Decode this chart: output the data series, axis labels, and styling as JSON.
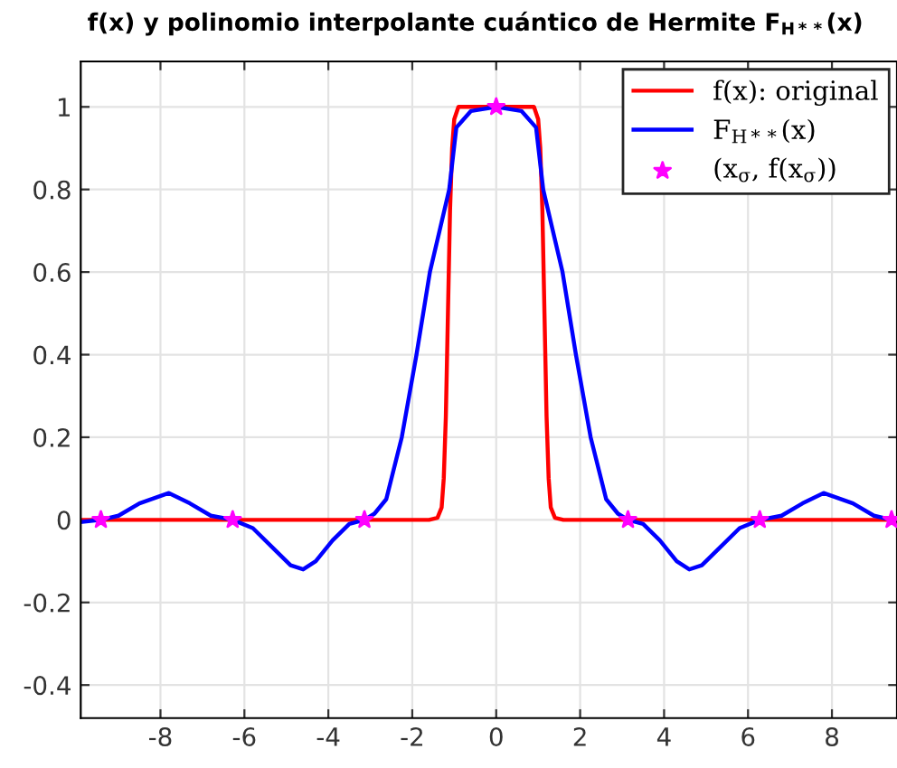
{
  "chart_data": {
    "type": "line",
    "title": "f(x) y polinomio interpolante cuántico de Hermite F$_{H**}$(x)",
    "xlim": [
      -9.9,
      9.55
    ],
    "ylim": [
      -0.48,
      1.11
    ],
    "xticks": [
      -8,
      -6,
      -4,
      -2,
      0,
      2,
      4,
      6,
      8
    ],
    "yticks": [
      -0.4,
      -0.2,
      0,
      0.2,
      0.4,
      0.6,
      0.8,
      1
    ],
    "grid": true,
    "legend": "top right",
    "line_style": "solid",
    "series": [
      {
        "name": "f(x): original",
        "color": "#ff0000",
        "x": [
          -9.9,
          -1.6,
          -1.4,
          -1.3,
          -1.25,
          -1.2,
          -1.15,
          -1.1,
          -1.05,
          -1.0,
          -0.9,
          0.9,
          1.0,
          1.05,
          1.1,
          1.15,
          1.2,
          1.25,
          1.3,
          1.4,
          1.6,
          9.55
        ],
        "values": [
          0,
          0,
          0.005,
          0.03,
          0.1,
          0.25,
          0.5,
          0.75,
          0.9,
          0.97,
          1.0,
          1.0,
          0.97,
          0.9,
          0.75,
          0.5,
          0.25,
          0.1,
          0.03,
          0.005,
          0,
          0
        ]
      },
      {
        "name": "F$_{H**}$(x)",
        "color": "#0000ff",
        "x": [
          -9.9,
          -9.42,
          -9.0,
          -8.5,
          -7.8,
          -7.3,
          -6.8,
          -6.28,
          -5.8,
          -5.3,
          -4.9,
          -4.6,
          -4.3,
          -3.9,
          -3.5,
          -3.14,
          -2.9,
          -2.62,
          -2.25,
          -1.9,
          -1.58,
          -1.35,
          -1.12,
          -0.95,
          -0.6,
          0,
          0.6,
          0.95,
          1.12,
          1.35,
          1.58,
          1.9,
          2.25,
          2.62,
          2.9,
          3.14,
          3.5,
          3.9,
          4.3,
          4.6,
          4.9,
          5.3,
          5.8,
          6.28,
          6.8,
          7.3,
          7.8,
          8.5,
          9.0,
          9.42
        ],
        "values": [
          -0.005,
          0,
          0.01,
          0.04,
          0.065,
          0.04,
          0.01,
          0,
          -0.02,
          -0.07,
          -0.11,
          -0.12,
          -0.1,
          -0.05,
          -0.01,
          0,
          0.015,
          0.05,
          0.2,
          0.4,
          0.6,
          0.7,
          0.8,
          0.95,
          0.99,
          1.0,
          0.99,
          0.95,
          0.8,
          0.7,
          0.6,
          0.4,
          0.2,
          0.05,
          0.015,
          0,
          -0.01,
          -0.05,
          -0.1,
          -0.12,
          -0.11,
          -0.07,
          -0.02,
          0,
          0.01,
          0.04,
          0.065,
          0.04,
          0.01,
          0
        ]
      },
      {
        "name": "(x$_{σ}$, f(x$_{σ}$))",
        "color": "#ff00ff",
        "type": "scatter",
        "marker": "star",
        "x": [
          -9.42,
          -6.28,
          -3.14,
          0,
          3.14,
          6.28,
          9.42
        ],
        "values": [
          0,
          0,
          0,
          1,
          0,
          0,
          0
        ]
      }
    ]
  }
}
